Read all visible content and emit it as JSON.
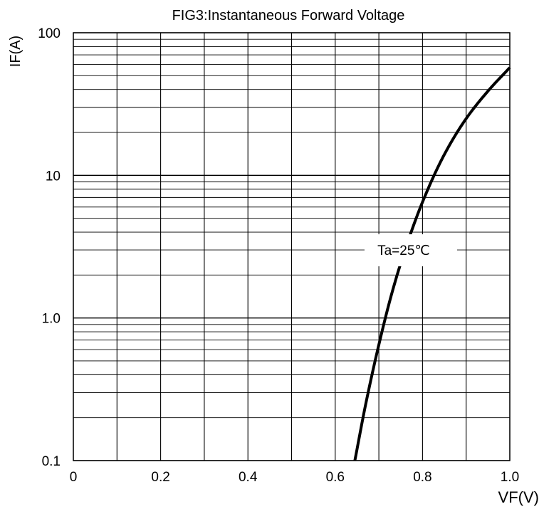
{
  "chart_data": {
    "type": "line",
    "title": "FIG3:Instantaneous Forward Voltage",
    "xlabel": "VF(V)",
    "ylabel": "IF(A)",
    "xlim": [
      0,
      1.0
    ],
    "ylim": [
      0.1,
      100
    ],
    "yscale": "log",
    "grid": true,
    "x_ticks": [
      0,
      0.1,
      0.2,
      0.3,
      0.4,
      0.5,
      0.6,
      0.7,
      0.8,
      0.9,
      1.0
    ],
    "x_tick_labels": [
      {
        "v": 0,
        "label": "0"
      },
      {
        "v": 0.2,
        "label": "0.2"
      },
      {
        "v": 0.4,
        "label": "0.4"
      },
      {
        "v": 0.6,
        "label": "0.6"
      },
      {
        "v": 0.8,
        "label": "0.8"
      },
      {
        "v": 1.0,
        "label": "1.0"
      }
    ],
    "y_tick_labels": [
      {
        "v": 0.1,
        "label": "0.1"
      },
      {
        "v": 1,
        "label": "1.0"
      },
      {
        "v": 10,
        "label": "10"
      },
      {
        "v": 100,
        "label": "100"
      }
    ],
    "series": [
      {
        "x": [
          0.645,
          0.67,
          0.7,
          0.73,
          0.76,
          0.8,
          0.85,
          0.9,
          0.95,
          1.0
        ],
        "y": [
          0.1,
          0.25,
          0.65,
          1.5,
          3.0,
          6.5,
          14,
          25,
          39,
          57
        ]
      }
    ],
    "annotations": [
      {
        "text": "Ta=25℃",
        "x": 0.765,
        "y": 3.0
      }
    ]
  }
}
